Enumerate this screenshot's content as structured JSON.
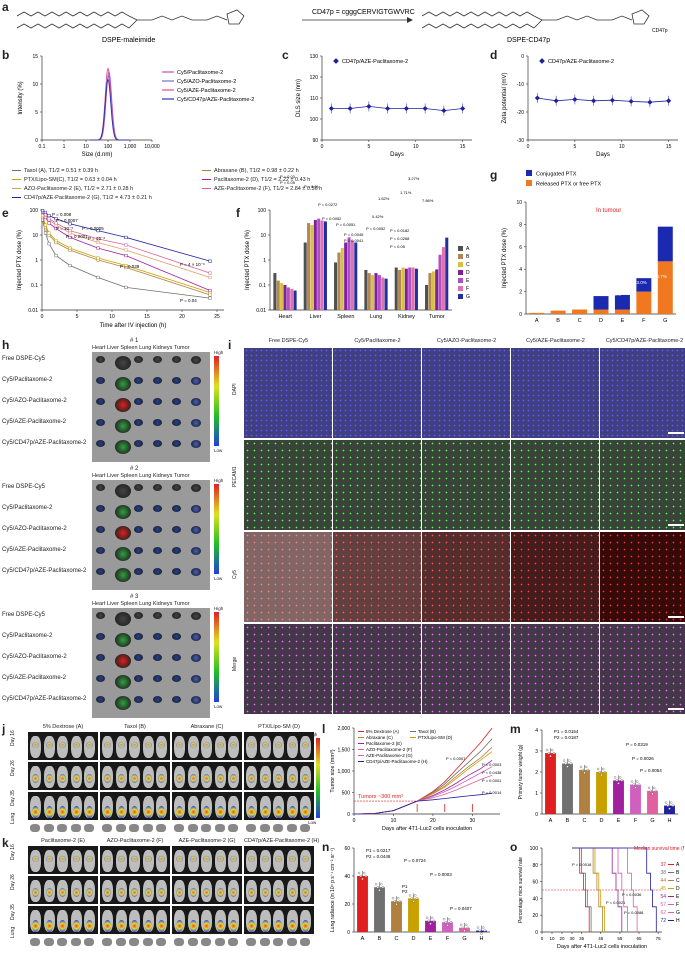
{
  "panel_a": {
    "letter": "a",
    "left_label": "DSPE-maleimide",
    "arrow_label": "CD47p = cgggCERVIGTGWVRC",
    "right_label": "DSPE-CD47p",
    "cd47p_tag": "CD47p"
  },
  "panel_b": {
    "letter": "b",
    "legend": [
      "Cy5/Paclitaxome-2",
      "Cy5/AZO-Paclitaxome-2",
      "Cy5/AZE-Paclitaxome-2",
      "Cy5/CD47p/AZE-Paclitaxome-2"
    ],
    "colors": [
      "#c050c0",
      "#7070d0",
      "#e05090",
      "#3030b0"
    ]
  },
  "panel_c": {
    "letter": "c",
    "legend": "CD47p/AZE-Paclitaxome-2"
  },
  "panel_d": {
    "letter": "d",
    "legend": "CD47p/AZE-Paclitaxome-2"
  },
  "panel_e": {
    "letter": "e",
    "legend_left": [
      "Taxol (A), T1/2 = 0.51 ± 0.39 h",
      "PTX/Lipo-SM(C), T1/2 = 0.63 ± 0.04 h",
      "AZO-Paclitaxome-2 (E), T1/2 = 2.71 ± 0.28 h",
      "CD47p/AZE-Paclitaxome-2 (G), T1/2 = 4.73 ± 0.21 h"
    ],
    "legend_right": [
      "Abraxane (B), T1/2 = 0.98 ± 0.22 h",
      "Paclitaxome-2 (D), T1/2 = 2.22 ± 0.43 h",
      "AZE-Paclitaxome-2 (F), T1/2 = 2.84 ± 0.56 h"
    ],
    "colors_left": [
      "#707070",
      "#c8a000",
      "#d8a060",
      "#2020a0"
    ],
    "colors_right": [
      "#b08040",
      "#a020a0",
      "#e060a0"
    ],
    "pvals": [
      "P = 0.008",
      "P = 0.0007",
      "P = 10⁻⁵",
      "P = 0.0001",
      "P = 0.0005",
      "P = 10⁻⁶",
      "P = 0.039",
      "P = 4 × 10⁻⁶",
      "P = 0.04"
    ]
  },
  "panel_f": {
    "letter": "f",
    "groups": [
      "A",
      "B",
      "C",
      "D",
      "E",
      "F",
      "G"
    ],
    "colors": [
      "#505050",
      "#b08850",
      "#d8c040",
      "#8020a0",
      "#b050c0",
      "#e070b0",
      "#2030a0"
    ],
    "pvals": [
      "P = 0.03",
      "P = 0.05",
      "P = 0.01",
      "P = 0.0272",
      "P = 0.0052",
      "P = 0.0051",
      "P = 0.0045",
      "P = 0.0041",
      "P = 0.0052",
      "P = 0.0182",
      "P = 0.0268",
      "P = 0.05",
      "0.42%",
      "1.62%",
      "1.71%",
      "3.27%",
      "7.86%"
    ]
  },
  "panel_g": {
    "letter": "g",
    "legend": [
      "Conjugated PTX",
      "Released PTX or free PTX"
    ],
    "annotation": "In tumour",
    "pcts": [
      "15.5%",
      "20.5%",
      "63.0%",
      "60.7%"
    ]
  },
  "panel_h": {
    "letter": "h",
    "replicates": [
      "# 1",
      "# 2",
      "# 3"
    ],
    "organs": "Heart  Liver Spleen Lung Kidneys Tumor",
    "rows": [
      "Free DSPE-Cy5",
      "Cy5/Paclitaxome-2",
      "Cy5/AZO-Paclitaxome-2",
      "Cy5/AZE-Paclitaxome-2",
      "Cy5/CD47p/AZE-Paclitaxome-2"
    ],
    "high": "High",
    "low": "Low"
  },
  "panel_i": {
    "letter": "i",
    "columns": [
      "Free DSPE-Cy5",
      "Cy5/Paclitaxome-2",
      "Cy5/AZO-Paclitaxome-2",
      "Cy5/AZE-Paclitaxome-2",
      "Cy5/CD47p/AZE-Paclitaxome-2"
    ],
    "rows": [
      "DAPI",
      "PECAM1",
      "Cy5",
      "Merge"
    ]
  },
  "panel_j": {
    "letter": "j",
    "groups": [
      "5% Dextrose (A)",
      "Taxol (B)",
      "Abraxane (C)",
      "PTX/Lipo-SM (D)"
    ],
    "days": [
      "Day 16",
      "Day 26",
      "Day 35"
    ],
    "lung": "Lung",
    "high": "High",
    "low": "Low"
  },
  "panel_k": {
    "letter": "k",
    "groups": [
      "Paclitaxome-2 (E)",
      "AZO-Paclitaxome-2 (F)",
      "AZE-Paclitaxome-2 (G)",
      "CD47p/AZE-Paclitaxome-2 (H)"
    ],
    "days": [
      "Day 16",
      "Day 26",
      "Day 35"
    ],
    "lung": "Lung"
  },
  "panel_l": {
    "letter": "l",
    "legend": [
      "5% Dextrose (A)",
      "Taxol (B)",
      "Abraxane (C)",
      "PTX/Lipo-SM (D)",
      "Paclitaxome-2 (E)",
      "AZO-Paclitaxome-2 (F)",
      "AZE-Paclitaxome-2 (G)",
      "CD47p/AZE-Paclitaxome-2 (H)"
    ],
    "colors": [
      "#e02020",
      "#707070",
      "#b08040",
      "#c8a000",
      "#a020a0",
      "#d060c0",
      "#e060a0",
      "#2020a0"
    ],
    "annotation": "Tumors ~300 mm³",
    "pvals": [
      "P = 0.0007",
      "P = 0.0003",
      "P = 0.0438",
      "P = 0.0001",
      "P = 0.0014"
    ]
  },
  "panel_m": {
    "letter": "m",
    "groups": [
      "A",
      "B",
      "C",
      "D",
      "E",
      "F",
      "G",
      "H"
    ],
    "colors": [
      "#e02020",
      "#707070",
      "#b08040",
      "#c8a000",
      "#a020a0",
      "#d060c0",
      "#e060a0",
      "#2020a0"
    ],
    "pvals": [
      "P1 = 0.0154",
      "P2 = 0.0187",
      "P = 0.0319",
      "P = 0.0026",
      "P = 0.0054"
    ]
  },
  "panel_n": {
    "letter": "n",
    "groups": [
      "A",
      "B",
      "C",
      "D",
      "E",
      "F",
      "G",
      "H"
    ],
    "colors": [
      "#e02020",
      "#707070",
      "#b08040",
      "#c8a000",
      "#a020a0",
      "#d060c0",
      "#e060a0",
      "#2020a0"
    ],
    "pvals": [
      "P1 = 0.0217",
      "P2 = 0.0448",
      "P = 0.0724",
      "P1",
      "P2",
      "P = 0.0003",
      "P = 0.0407"
    ]
  },
  "panel_o": {
    "letter": "o",
    "legend_title": "Median survival time (MST, day)",
    "mst": [
      "37",
      "38",
      "44",
      "45",
      "54",
      "57",
      "62",
      "72"
    ],
    "groups": [
      "A",
      "B",
      "C",
      "D",
      "E",
      "F",
      "G",
      "H"
    ],
    "colors": [
      "#e02020",
      "#707070",
      "#b08040",
      "#c8a000",
      "#a020a0",
      "#d060c0",
      "#e060a0",
      "#2020a0"
    ],
    "pvals": [
      "P = 0.0018",
      "P = 0.0021",
      "P = 0.0036",
      "P = 0.0088"
    ]
  },
  "chart_data": [
    {
      "panel": "b",
      "type": "line",
      "xlabel": "Size (d.nm)",
      "ylabel": "Intensity (%)",
      "xscale": "log",
      "xlim": [
        0.1,
        10000
      ],
      "ylim": [
        0,
        15
      ],
      "xticks": [
        "0.1",
        "1",
        "10",
        "100",
        "1,000",
        "10,000"
      ],
      "yticks": [
        "0",
        "5",
        "10",
        "15"
      ],
      "series": [
        {
          "name": "Cy5/Paclitaxome-2",
          "peak_x": 110,
          "peak_y": 12.2
        },
        {
          "name": "Cy5/AZO-Paclitaxome-2",
          "peak_x": 105,
          "peak_y": 11.5
        },
        {
          "name": "Cy5/AZE-Paclitaxome-2",
          "peak_x": 100,
          "peak_y": 12.8
        },
        {
          "name": "Cy5/CD47p/AZE-Paclitaxome-2",
          "peak_x": 100,
          "peak_y": 10.8
        }
      ]
    },
    {
      "panel": "c",
      "type": "line",
      "xlabel": "Days",
      "ylabel": "DLS size (nm)",
      "ylim": [
        90,
        130
      ],
      "yticks": [
        "90",
        "100",
        "110",
        "120",
        "130"
      ],
      "xticks": [
        "0",
        "5",
        "10",
        "15"
      ],
      "series": [
        {
          "name": "CD47p/AZE-Paclitaxome-2",
          "x": [
            1,
            3,
            5,
            7,
            9,
            11,
            13,
            15
          ],
          "y": [
            105,
            105,
            106,
            105,
            105,
            105,
            104,
            105
          ]
        }
      ]
    },
    {
      "panel": "d",
      "type": "line",
      "xlabel": "Days",
      "ylabel": "Zeta potential (mV)",
      "ylim": [
        -30,
        0
      ],
      "yticks": [
        "-30",
        "-20",
        "-10",
        "0"
      ],
      "xticks": [
        "0",
        "5",
        "10",
        "15"
      ],
      "series": [
        {
          "name": "CD47p/AZE-Paclitaxome-2",
          "x": [
            1,
            3,
            5,
            7,
            9,
            11,
            13,
            15
          ],
          "y": [
            -15,
            -16,
            -15.5,
            -16,
            -15.8,
            -16.2,
            -16.5,
            -16
          ]
        }
      ]
    },
    {
      "panel": "e",
      "type": "line",
      "xlabel": "Time after IV injection (h)",
      "ylabel": "Injected PTX dose (%)",
      "yscale": "log",
      "ylim": [
        0.01,
        100
      ],
      "xticks": [
        "0",
        "5",
        "10",
        "15",
        "20",
        "25"
      ],
      "yticks": [
        "0.01",
        "0.1",
        "1",
        "10",
        "100"
      ],
      "x": [
        0.083,
        0.5,
        1,
        2,
        4,
        8,
        12,
        24
      ],
      "series": [
        {
          "name": "A",
          "y": [
            40,
            12,
            4.5,
            1.5,
            0.6,
            0.2,
            0.08,
            0.03
          ]
        },
        {
          "name": "B",
          "y": [
            50,
            20,
            10,
            5,
            2.5,
            1,
            0.5,
            0.04
          ]
        },
        {
          "name": "C",
          "y": [
            60,
            25,
            12,
            6,
            3,
            1.2,
            0.6,
            0.05
          ]
        },
        {
          "name": "D",
          "y": [
            80,
            50,
            30,
            18,
            8,
            3,
            1.5,
            0.06
          ]
        },
        {
          "name": "E",
          "y": [
            85,
            60,
            40,
            25,
            12,
            5,
            2.5,
            0.2
          ]
        },
        {
          "name": "F",
          "y": [
            90,
            65,
            45,
            30,
            15,
            7,
            4,
            0.3
          ]
        },
        {
          "name": "G",
          "y": [
            95,
            80,
            60,
            45,
            28,
            15,
            8,
            0.9
          ]
        }
      ]
    },
    {
      "panel": "f",
      "type": "bar",
      "ylabel": "Injected PTX dose (%)",
      "yscale": "log",
      "ylim": [
        0.01,
        100
      ],
      "categories": [
        "Heart",
        "Liver",
        "Spleen",
        "Lung",
        "Kidney",
        "Tumor"
      ],
      "yticks": [
        "0.01",
        "0.1",
        "1",
        "10",
        "100"
      ],
      "series": [
        {
          "name": "A",
          "values": [
            0.3,
            5,
            0.8,
            0.4,
            0.5,
            0.1
          ]
        },
        {
          "name": "B",
          "values": [
            0.15,
            30,
            2,
            0.3,
            0.4,
            0.3
          ]
        },
        {
          "name": "C",
          "values": [
            0.12,
            25,
            3,
            0.25,
            0.5,
            0.35
          ]
        },
        {
          "name": "D",
          "values": [
            0.1,
            40,
            5,
            0.3,
            0.45,
            0.42
          ]
        },
        {
          "name": "E",
          "values": [
            0.08,
            45,
            8,
            0.25,
            0.5,
            1.62
          ]
        },
        {
          "name": "F",
          "values": [
            0.07,
            38,
            6,
            0.2,
            0.5,
            3.27
          ]
        },
        {
          "name": "G",
          "values": [
            0.06,
            35,
            5,
            0.18,
            0.45,
            7.86
          ]
        }
      ]
    },
    {
      "panel": "g",
      "type": "bar",
      "ylabel": "Injected PTX dose (%)",
      "ylim": [
        0,
        10
      ],
      "yticks": [
        "0",
        "2",
        "4",
        "6",
        "8",
        "10"
      ],
      "categories": [
        "A",
        "B",
        "C",
        "D",
        "E",
        "F",
        "G"
      ],
      "series": [
        {
          "name": "Conjugated PTX",
          "values": [
            0,
            0,
            0,
            1.2,
            1.3,
            1.2,
            3.1
          ]
        },
        {
          "name": "Released PTX or free PTX",
          "values": [
            0.1,
            0.3,
            0.4,
            0.4,
            0.4,
            2.0,
            4.7
          ]
        }
      ]
    },
    {
      "panel": "l",
      "type": "line",
      "xlabel": "Days after 4T1-Luc2 cells inoculation",
      "ylabel": "Tumor size (mm³)",
      "ylim": [
        0,
        2000
      ],
      "yticks": [
        "0",
        "500",
        "1,000",
        "1,500",
        "2,000"
      ],
      "xticks": [
        "0",
        "10",
        "20",
        "30"
      ],
      "x": [
        0,
        5,
        10,
        16,
        20,
        23,
        26,
        29,
        32,
        35
      ],
      "series": [
        {
          "name": "A",
          "y": [
            0,
            10,
            80,
            300,
            520,
            750,
            1050,
            1350,
            1650,
            2000
          ]
        },
        {
          "name": "B",
          "y": [
            0,
            10,
            80,
            300,
            500,
            700,
            950,
            1200,
            1450,
            1750
          ]
        },
        {
          "name": "C",
          "y": [
            0,
            10,
            80,
            300,
            480,
            650,
            880,
            1100,
            1300,
            1550
          ]
        },
        {
          "name": "D",
          "y": [
            0,
            10,
            80,
            300,
            470,
            620,
            830,
            1050,
            1250,
            1450
          ]
        },
        {
          "name": "E",
          "y": [
            0,
            10,
            80,
            300,
            430,
            560,
            720,
            900,
            1050,
            1250
          ]
        },
        {
          "name": "F",
          "y": [
            0,
            10,
            80,
            300,
            410,
            520,
            650,
            800,
            950,
            1100
          ]
        },
        {
          "name": "G",
          "y": [
            0,
            10,
            80,
            300,
            380,
            460,
            560,
            680,
            800,
            900
          ]
        },
        {
          "name": "H",
          "y": [
            0,
            10,
            80,
            300,
            330,
            360,
            390,
            420,
            450,
            480
          ]
        }
      ]
    },
    {
      "panel": "m",
      "type": "bar",
      "ylabel": "Primary tumor weight (g)",
      "ylim": [
        0,
        4
      ],
      "yticks": [
        "0",
        "1",
        "2",
        "3",
        "4"
      ],
      "categories": [
        "A",
        "B",
        "C",
        "D",
        "E",
        "F",
        "G",
        "H"
      ],
      "values": [
        2.9,
        2.4,
        2.1,
        2.0,
        1.6,
        1.4,
        1.1,
        0.4
      ]
    },
    {
      "panel": "n",
      "type": "bar",
      "ylabel": "Lung radiance (in 10⁴ p s⁻¹ cm⁻² sr⁻¹)",
      "ylim": [
        0,
        60
      ],
      "yticks": [
        "0",
        "20",
        "40",
        "60"
      ],
      "categories": [
        "A",
        "B",
        "C",
        "D",
        "E",
        "F",
        "G",
        "H"
      ],
      "values": [
        40,
        32,
        22,
        24,
        8,
        7,
        3,
        1
      ]
    },
    {
      "panel": "o",
      "type": "line",
      "xlabel": "Days after 4T1-Luc2 cells inoculation",
      "ylabel": "Percentage mice survival rate",
      "ylim": [
        0,
        100
      ],
      "yticks": [
        "0",
        "20",
        "40",
        "60",
        "80",
        "100"
      ],
      "xticks": [
        "0",
        "10",
        "20",
        "30",
        "35",
        "45",
        "55",
        "65",
        "75"
      ],
      "series": [
        {
          "name": "A",
          "mst": 37
        },
        {
          "name": "B",
          "mst": 38
        },
        {
          "name": "C",
          "mst": 44
        },
        {
          "name": "D",
          "mst": 45
        },
        {
          "name": "E",
          "mst": 54
        },
        {
          "name": "F",
          "mst": 57
        },
        {
          "name": "G",
          "mst": 62
        },
        {
          "name": "H",
          "mst": 72
        }
      ]
    }
  ]
}
